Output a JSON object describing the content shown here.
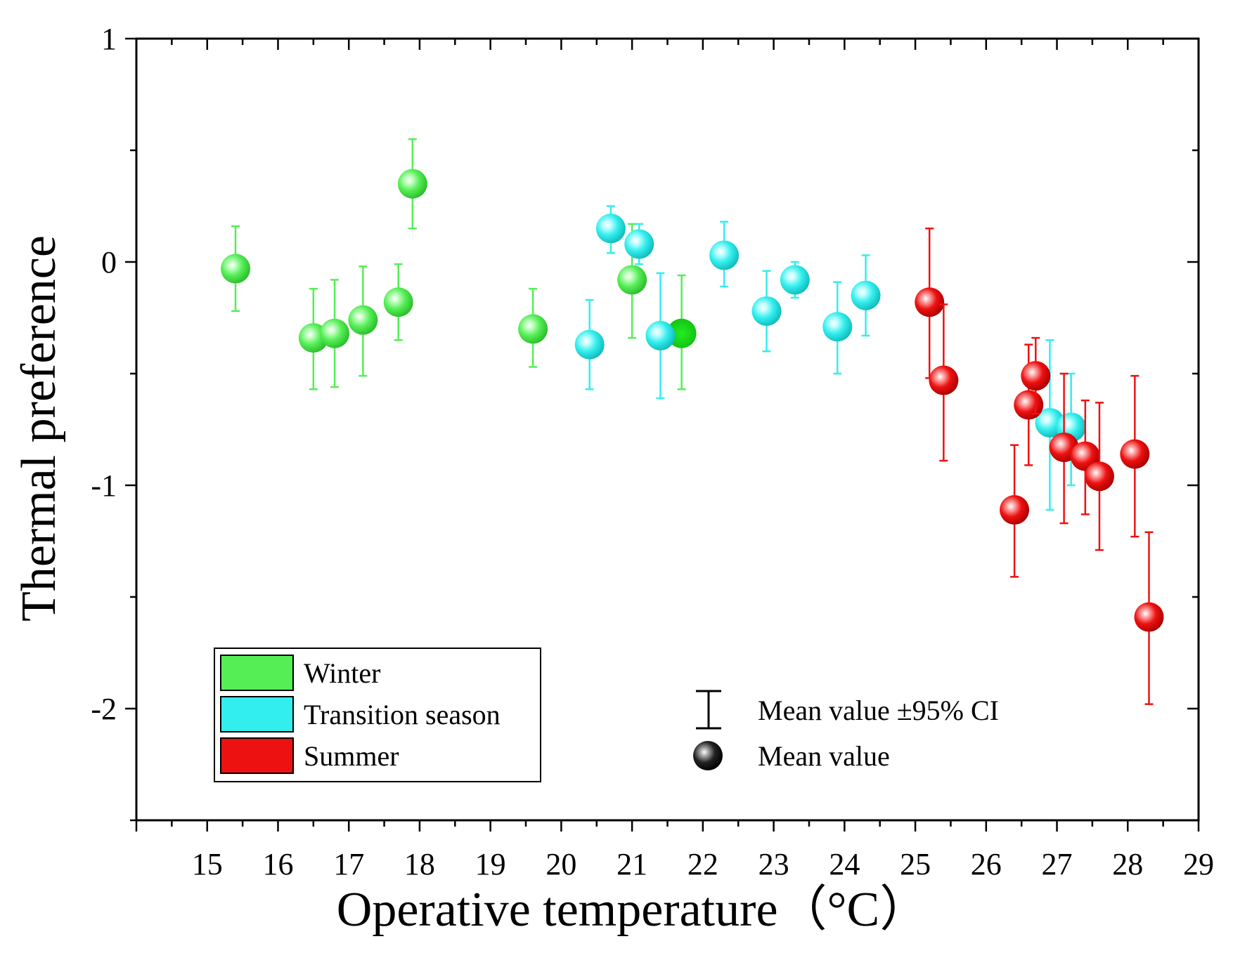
{
  "chart_data": {
    "type": "scatter",
    "xlabel": "Operative temperature（°C）",
    "ylabel": "Thermal preference",
    "xlim": [
      14,
      29
    ],
    "ylim": [
      -2.5,
      1
    ],
    "x_ticks": [
      "15",
      "16",
      "17",
      "18",
      "19",
      "20",
      "21",
      "22",
      "23",
      "24",
      "25",
      "26",
      "27",
      "28",
      "29"
    ],
    "y_ticks": [
      "1",
      "0",
      "-1",
      "-2"
    ],
    "grid": false,
    "legend": {
      "position": "bottom-left",
      "entries": [
        "Winter",
        "Transition season",
        "Summer"
      ]
    },
    "key": {
      "position": "bottom-center",
      "errorbar_label": "Mean value ±95% CI",
      "marker_label": "Mean value"
    },
    "series": [
      {
        "name": "Winter",
        "color": "#55ee55",
        "points": [
          {
            "x": 15.4,
            "y": -0.03,
            "lo": -0.22,
            "hi": 0.16
          },
          {
            "x": 16.5,
            "y": -0.34,
            "lo": -0.57,
            "hi": -0.12
          },
          {
            "x": 16.8,
            "y": -0.32,
            "lo": -0.56,
            "hi": -0.08
          },
          {
            "x": 17.2,
            "y": -0.26,
            "lo": -0.51,
            "hi": -0.02
          },
          {
            "x": 17.7,
            "y": -0.18,
            "lo": -0.35,
            "hi": -0.01
          },
          {
            "x": 17.9,
            "y": 0.35,
            "lo": 0.15,
            "hi": 0.55
          },
          {
            "x": 19.6,
            "y": -0.3,
            "lo": -0.47,
            "hi": -0.12
          },
          {
            "x": 21.0,
            "y": -0.08,
            "lo": -0.34,
            "hi": 0.17
          },
          {
            "x": 21.7,
            "y": -0.32,
            "lo": -0.57,
            "hi": -0.06
          }
        ]
      },
      {
        "name": "Transition season",
        "color": "#33eeee",
        "points": [
          {
            "x": 20.4,
            "y": -0.37,
            "lo": -0.57,
            "hi": -0.17
          },
          {
            "x": 20.7,
            "y": 0.15,
            "lo": 0.04,
            "hi": 0.25
          },
          {
            "x": 21.1,
            "y": 0.08,
            "lo": -0.01,
            "hi": 0.17
          },
          {
            "x": 21.4,
            "y": -0.33,
            "lo": -0.61,
            "hi": -0.05
          },
          {
            "x": 22.3,
            "y": 0.03,
            "lo": -0.11,
            "hi": 0.18
          },
          {
            "x": 22.9,
            "y": -0.22,
            "lo": -0.4,
            "hi": -0.04
          },
          {
            "x": 23.3,
            "y": -0.08,
            "lo": -0.16,
            "hi": 0.0
          },
          {
            "x": 23.9,
            "y": -0.29,
            "lo": -0.5,
            "hi": -0.09
          },
          {
            "x": 24.3,
            "y": -0.15,
            "lo": -0.33,
            "hi": 0.03
          },
          {
            "x": 26.9,
            "y": -0.72,
            "lo": -1.11,
            "hi": -0.35
          },
          {
            "x": 27.2,
            "y": -0.74,
            "lo": -1.0,
            "hi": -0.5
          }
        ]
      },
      {
        "name": "Summer",
        "color": "#ee1111",
        "points": [
          {
            "x": 25.2,
            "y": -0.18,
            "lo": -0.52,
            "hi": 0.15
          },
          {
            "x": 25.4,
            "y": -0.53,
            "lo": -0.89,
            "hi": -0.19
          },
          {
            "x": 26.4,
            "y": -1.11,
            "lo": -1.41,
            "hi": -0.82
          },
          {
            "x": 26.6,
            "y": -0.64,
            "lo": -0.91,
            "hi": -0.37
          },
          {
            "x": 26.7,
            "y": -0.51,
            "lo": -0.68,
            "hi": -0.34
          },
          {
            "x": 27.1,
            "y": -0.83,
            "lo": -1.17,
            "hi": -0.5
          },
          {
            "x": 27.4,
            "y": -0.87,
            "lo": -1.13,
            "hi": -0.62
          },
          {
            "x": 27.6,
            "y": -0.96,
            "lo": -1.29,
            "hi": -0.63
          },
          {
            "x": 28.1,
            "y": -0.86,
            "lo": -1.23,
            "hi": -0.51
          },
          {
            "x": 28.3,
            "y": -1.59,
            "lo": -1.98,
            "hi": -1.21
          }
        ]
      }
    ]
  }
}
